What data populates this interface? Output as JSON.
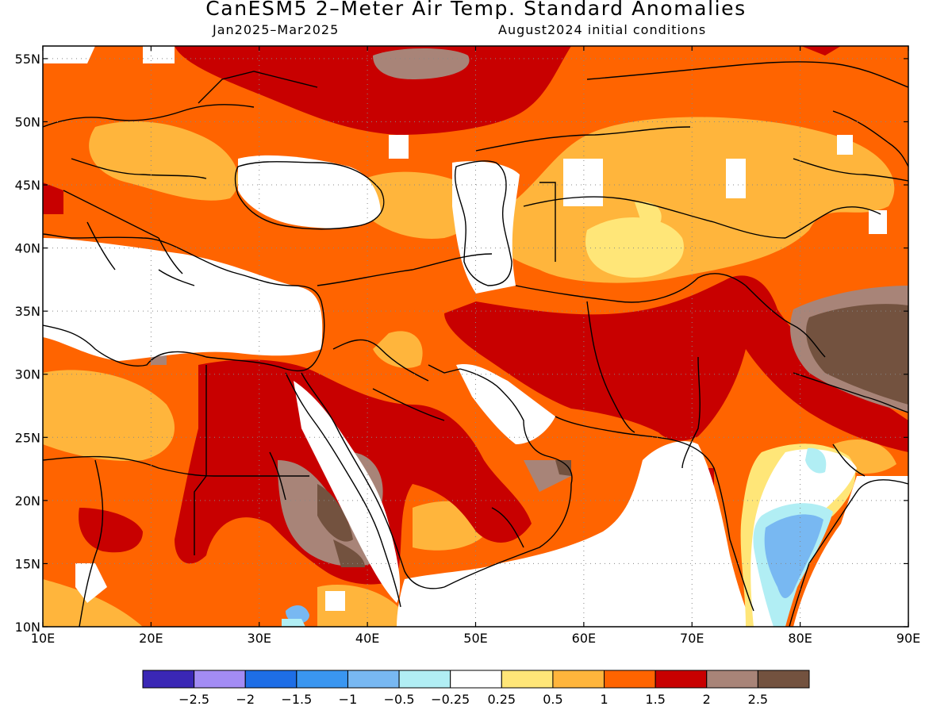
{
  "title": "CanESM5 2–Meter Air Temp. Standard Anomalies",
  "period": "Jan2025–Mar2025",
  "initial_conditions": "August2024 initial conditions",
  "map": {
    "lon_range": [
      10,
      90
    ],
    "lat_range": [
      10,
      56
    ],
    "lon_ticks": [
      10,
      20,
      30,
      40,
      50,
      60,
      70,
      80,
      90
    ],
    "lat_ticks": [
      10,
      15,
      20,
      25,
      30,
      35,
      40,
      45,
      50,
      55
    ],
    "lon_tick_labels": [
      "10E",
      "20E",
      "30E",
      "40E",
      "50E",
      "60E",
      "70E",
      "80E",
      "90E"
    ],
    "lat_tick_labels": [
      "10N",
      "15N",
      "20N",
      "25N",
      "30N",
      "35N",
      "40N",
      "45N",
      "50N",
      "55N"
    ],
    "grid": "dotted"
  },
  "legend": {
    "colors": [
      "#3a27b5",
      "#a38cf4",
      "#1e6ee6",
      "#3a96f0",
      "#78b8f2",
      "#b1eef4",
      "#ffffff",
      "#ffe678",
      "#ffb53c",
      "#ff6400",
      "#c80000",
      "#a88478",
      "#73523f"
    ],
    "labels": [
      "−2.5",
      "−2",
      "−1.5",
      "−1",
      "−0.5",
      "−0.25",
      "0.25",
      "0.5",
      "1",
      "1.5",
      "2",
      "2.5"
    ],
    "bins": [
      [
        -99,
        -2.5
      ],
      [
        -2.5,
        -2
      ],
      [
        -2,
        -1.5
      ],
      [
        -1.5,
        -1
      ],
      [
        -1,
        -0.5
      ],
      [
        -0.5,
        -0.25
      ],
      [
        -0.25,
        0.25
      ],
      [
        0.25,
        0.5
      ],
      [
        0.5,
        1
      ],
      [
        1,
        1.5
      ],
      [
        1.5,
        2
      ],
      [
        2,
        2.5
      ],
      [
        2.5,
        99
      ]
    ]
  }
}
